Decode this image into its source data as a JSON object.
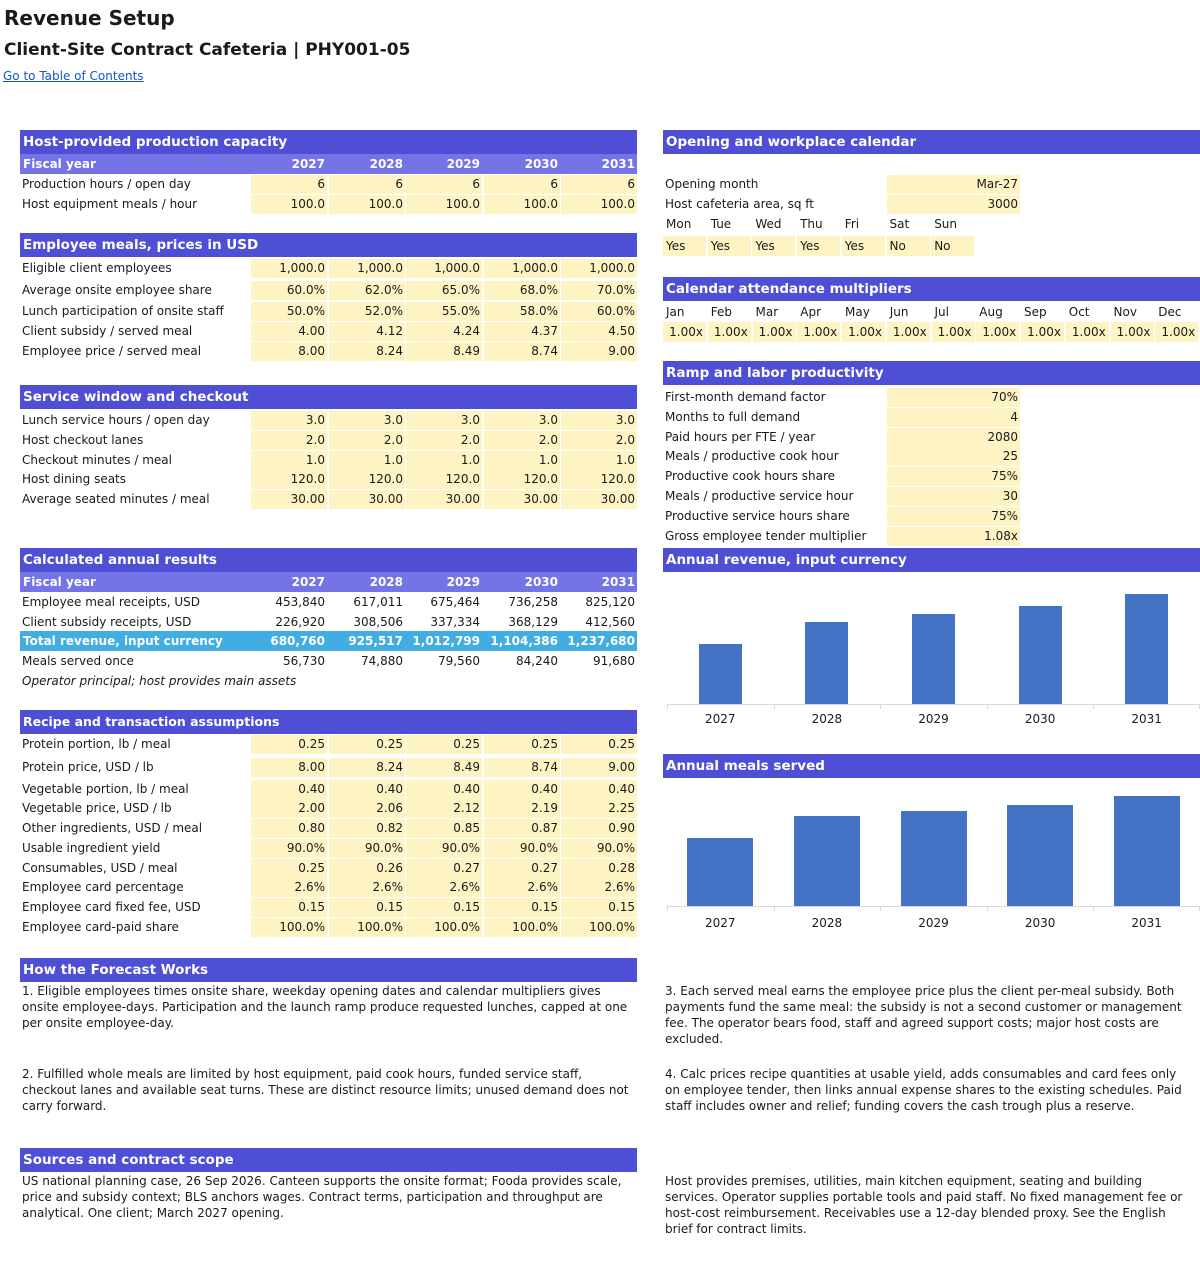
{
  "page": {
    "title": "Revenue Setup",
    "subtitle": "Client-Site Contract Cafeteria | PHY001-05",
    "toc_link": "Go to Table of Contents"
  },
  "years": [
    "2027",
    "2028",
    "2029",
    "2030",
    "2031"
  ],
  "capacity": {
    "header": "Host-provided production capacity",
    "fy_label": "Fiscal year",
    "rows": [
      {
        "label": "Production hours / open day",
        "values": [
          "6",
          "6",
          "6",
          "6",
          "6"
        ]
      },
      {
        "label": "Host equipment meals / hour",
        "values": [
          "100.0",
          "100.0",
          "100.0",
          "100.0",
          "100.0"
        ]
      }
    ]
  },
  "meals": {
    "header": "Employee meals, prices in USD",
    "rows": [
      {
        "label": "Eligible client employees",
        "values": [
          "1,000.0",
          "1,000.0",
          "1,000.0",
          "1,000.0",
          "1,000.0"
        ]
      },
      {
        "label": "Average onsite employee share",
        "values": [
          "60.0%",
          "62.0%",
          "65.0%",
          "68.0%",
          "70.0%"
        ]
      },
      {
        "label": "Lunch participation of onsite staff",
        "values": [
          "50.0%",
          "52.0%",
          "55.0%",
          "58.0%",
          "60.0%"
        ]
      },
      {
        "label": "Client subsidy / served meal",
        "values": [
          "4.00",
          "4.12",
          "4.24",
          "4.37",
          "4.50"
        ]
      },
      {
        "label": "Employee price / served meal",
        "values": [
          "8.00",
          "8.24",
          "8.49",
          "8.74",
          "9.00"
        ]
      }
    ]
  },
  "service": {
    "header": "Service window and checkout",
    "rows": [
      {
        "label": "Lunch service hours / open day",
        "values": [
          "3.0",
          "3.0",
          "3.0",
          "3.0",
          "3.0"
        ]
      },
      {
        "label": "Host checkout lanes",
        "values": [
          "2.0",
          "2.0",
          "2.0",
          "2.0",
          "2.0"
        ]
      },
      {
        "label": "Checkout minutes / meal",
        "values": [
          "1.0",
          "1.0",
          "1.0",
          "1.0",
          "1.0"
        ]
      },
      {
        "label": "Host dining seats",
        "values": [
          "120.0",
          "120.0",
          "120.0",
          "120.0",
          "120.0"
        ]
      },
      {
        "label": "Average seated minutes / meal",
        "values": [
          "30.00",
          "30.00",
          "30.00",
          "30.00",
          "30.00"
        ]
      }
    ]
  },
  "results": {
    "header": "Calculated annual results",
    "fy_label": "Fiscal year",
    "rows": [
      {
        "label": "Employee meal receipts, USD",
        "values": [
          "453,840",
          "617,011",
          "675,464",
          "736,258",
          "825,120"
        ]
      },
      {
        "label": "Client subsidy receipts, USD",
        "values": [
          "226,920",
          "308,506",
          "337,334",
          "368,129",
          "412,560"
        ]
      }
    ],
    "total": {
      "label": "Total revenue, input currency",
      "values": [
        "680,760",
        "925,517",
        "1,012,799",
        "1,104,386",
        "1,237,680"
      ]
    },
    "meals_row": {
      "label": "Meals served once",
      "values": [
        "56,730",
        "74,880",
        "79,560",
        "84,240",
        "91,680"
      ]
    },
    "note": "Operator principal; host provides main assets"
  },
  "recipe": {
    "header": "Recipe and transaction assumptions",
    "rows": [
      {
        "label": "Protein portion, lb / meal",
        "values": [
          "0.25",
          "0.25",
          "0.25",
          "0.25",
          "0.25"
        ]
      },
      {
        "label": "Protein price, USD / lb",
        "values": [
          "8.00",
          "8.24",
          "8.49",
          "8.74",
          "9.00"
        ]
      },
      {
        "label": "Vegetable portion, lb / meal",
        "values": [
          "0.40",
          "0.40",
          "0.40",
          "0.40",
          "0.40"
        ]
      },
      {
        "label": "Vegetable price, USD / lb",
        "values": [
          "2.00",
          "2.06",
          "2.12",
          "2.19",
          "2.25"
        ]
      },
      {
        "label": "Other ingredients, USD / meal",
        "values": [
          "0.80",
          "0.82",
          "0.85",
          "0.87",
          "0.90"
        ]
      },
      {
        "label": "Usable ingredient yield",
        "values": [
          "90.0%",
          "90.0%",
          "90.0%",
          "90.0%",
          "90.0%"
        ]
      },
      {
        "label": "Consumables, USD / meal",
        "values": [
          "0.25",
          "0.26",
          "0.27",
          "0.27",
          "0.28"
        ]
      },
      {
        "label": "Employee card percentage",
        "values": [
          "2.6%",
          "2.6%",
          "2.6%",
          "2.6%",
          "2.6%"
        ]
      },
      {
        "label": "Employee card fixed fee, USD",
        "values": [
          "0.15",
          "0.15",
          "0.15",
          "0.15",
          "0.15"
        ]
      },
      {
        "label": "Employee card-paid share",
        "values": [
          "100.0%",
          "100.0%",
          "100.0%",
          "100.0%",
          "100.0%"
        ]
      }
    ]
  },
  "calendar": {
    "header": "Opening and workplace calendar",
    "opening_label": "Opening month",
    "opening_value": "Mar-27",
    "area_label": "Host cafeteria area, sq ft",
    "area_value": "3000",
    "days": [
      "Mon",
      "Tue",
      "Wed",
      "Thu",
      "Fri",
      "Sat",
      "Sun"
    ],
    "open": [
      "Yes",
      "Yes",
      "Yes",
      "Yes",
      "Yes",
      "No",
      "No"
    ]
  },
  "multipliers": {
    "header": "Calendar attendance multipliers",
    "months": [
      "Jan",
      "Feb",
      "Mar",
      "Apr",
      "May",
      "Jun",
      "Jul",
      "Aug",
      "Sep",
      "Oct",
      "Nov",
      "Dec"
    ],
    "values": [
      "1.00x",
      "1.00x",
      "1.00x",
      "1.00x",
      "1.00x",
      "1.00x",
      "1.00x",
      "1.00x",
      "1.00x",
      "1.00x",
      "1.00x",
      "1.00x"
    ]
  },
  "ramp": {
    "header": "Ramp and labor productivity",
    "rows": [
      {
        "label": "First-month demand factor",
        "value": "70%"
      },
      {
        "label": "Months to full demand",
        "value": "4"
      },
      {
        "label": "Paid hours per FTE / year",
        "value": "2080"
      },
      {
        "label": "Meals / productive cook hour",
        "value": "25"
      },
      {
        "label": "Productive cook hours share",
        "value": "75%"
      },
      {
        "label": "Meals / productive service hour",
        "value": "30"
      },
      {
        "label": "Productive service hours share",
        "value": "75%"
      },
      {
        "label": "Gross employee tender multiplier",
        "value": "1.08x"
      }
    ]
  },
  "chart_data": [
    {
      "type": "bar",
      "title": "Annual revenue, input currency",
      "categories": [
        "2027",
        "2028",
        "2029",
        "2030",
        "2031"
      ],
      "values": [
        680760,
        925517,
        1012799,
        1104386,
        1237680
      ],
      "ylim": [
        0,
        1400000
      ],
      "color": "#4472c4",
      "grid": false
    },
    {
      "type": "bar",
      "title": "Annual meals served",
      "categories": [
        "2027",
        "2028",
        "2029",
        "2030",
        "2031"
      ],
      "values": [
        56730,
        74880,
        79560,
        84240,
        91680
      ],
      "ylim": [
        0,
        100000
      ],
      "color": "#4472c4",
      "grid": false
    }
  ],
  "forecast": {
    "header": "How the Forecast Works",
    "p1": "1. Eligible employees times onsite share, weekday opening dates and calendar multipliers gives onsite employee-days. Participation and the launch ramp produce requested lunches, capped at one per onsite employee-day.",
    "p2": "2. Fulfilled whole meals are limited by host equipment, paid cook hours, funded service staff, checkout lanes and available seat turns. These are distinct resource limits; unused demand does not carry forward.",
    "p3": "3. Each served meal earns the employee price plus the client per-meal subsidy. Both payments fund the same meal: the subsidy is not a second customer or management fee. The operator bears food, staff and agreed support costs; major host costs are excluded.",
    "p4": "4. Calc prices recipe quantities at usable yield, adds consumables and card fees only on employee tender, then links annual expense shares to the existing schedules. Paid staff includes owner and relief; funding covers the cash trough plus a reserve."
  },
  "sources": {
    "header": "Sources and contract scope",
    "p1": "US national planning case, 26 Sep 2026. Canteen supports the onsite format; Fooda provides scale, price and subsidy context; BLS anchors wages. Contract terms, participation and throughput are analytical. One client; March 2027 opening.",
    "p2": "Host provides premises, utilities, main kitchen equipment, seating and building services. Operator supplies portable tools and paid staff. No fixed management fee or host-cost reimbursement. Receivables use a 12-day blended proxy. See the English brief for contract limits."
  }
}
